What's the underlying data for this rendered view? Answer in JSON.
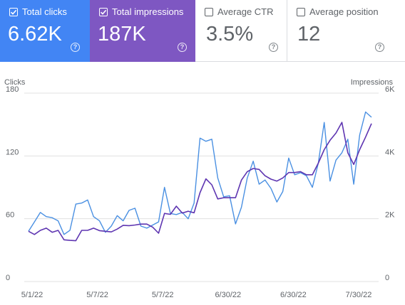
{
  "cards": [
    {
      "label": "Total clicks",
      "value": "6.62K",
      "checked": true,
      "color": "#4285f4"
    },
    {
      "label": "Total impressions",
      "value": "187K",
      "checked": true,
      "color": "#7e57c2"
    },
    {
      "label": "Average CTR",
      "value": "3.5%",
      "checked": false
    },
    {
      "label": "Average position",
      "value": "12",
      "checked": false
    }
  ],
  "help_glyph": "?",
  "chart_data": {
    "type": "line",
    "y_left_label": "Clicks",
    "y_right_label": "Impressions",
    "y_left_ticks": [
      "180",
      "120",
      "60",
      "0"
    ],
    "y_right_ticks": [
      "6K",
      "4K",
      "2K",
      "0"
    ],
    "y_left_lim": [
      0,
      180
    ],
    "y_right_lim": [
      0,
      6000
    ],
    "x_tick_labels": [
      "5/1/22",
      "5/7/22",
      "5/7/22",
      "6/30/22",
      "6/30/22",
      "7/30/22"
    ],
    "grid": true,
    "series": [
      {
        "name": "Clicks",
        "axis": "left",
        "color": "#4a90e2",
        "values": [
          48,
          57,
          66,
          62,
          61,
          58,
          45,
          49,
          74,
          75,
          78,
          62,
          58,
          47,
          53,
          63,
          58,
          68,
          70,
          53,
          51,
          54,
          57,
          90,
          65,
          64,
          66,
          60,
          75,
          137,
          134,
          136,
          99,
          81,
          82,
          55,
          71,
          99,
          115,
          93,
          97,
          89,
          76,
          86,
          118,
          102,
          104,
          101,
          90,
          113,
          152,
          96,
          116,
          123,
          136,
          93,
          140,
          162,
          157
        ]
      },
      {
        "name": "Impressions",
        "axis": "right",
        "color": "#5e35b1",
        "values": [
          1600,
          1500,
          1630,
          1700,
          1570,
          1630,
          1330,
          1310,
          1300,
          1630,
          1630,
          1700,
          1620,
          1600,
          1580,
          1670,
          1790,
          1780,
          1800,
          1830,
          1830,
          1730,
          1540,
          2170,
          2140,
          2400,
          2180,
          2240,
          2190,
          2830,
          3270,
          3080,
          2630,
          2670,
          2670,
          2670,
          3230,
          3500,
          3600,
          3570,
          3370,
          3260,
          3200,
          3300,
          3470,
          3470,
          3500,
          3400,
          3400,
          3770,
          4200,
          4500,
          4730,
          5070,
          4100,
          3730,
          4200,
          4600,
          5030
        ]
      }
    ]
  }
}
